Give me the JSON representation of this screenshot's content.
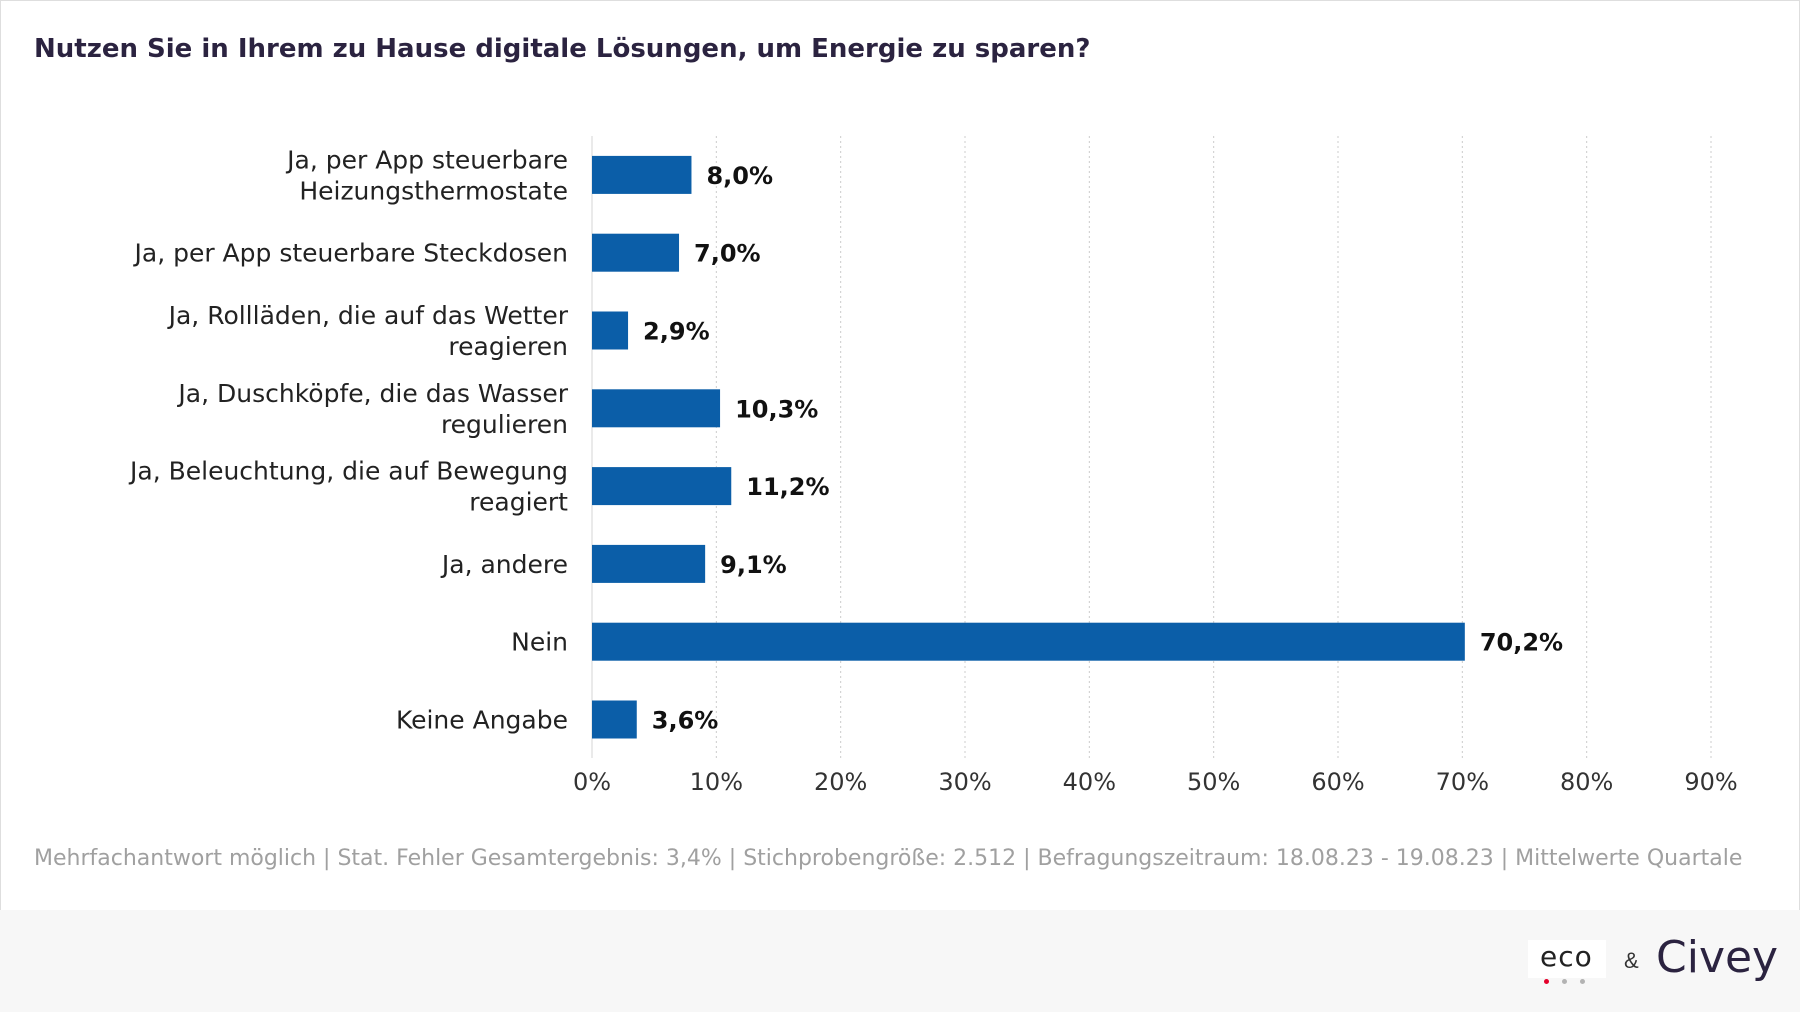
{
  "title": "Nutzen Sie in Ihrem zu Hause digitale Lösungen, um Energie zu sparen?",
  "footnote": "Mehrfachantwort möglich | Stat. Fehler Gesamtergebnis: 3,4% | Stichprobengröße: 2.512 | Befragungszeitraum: 18.08.23 - 19.08.23 | Mittelwerte Quartale",
  "logos": {
    "eco": "eco",
    "ampersand": "&",
    "civey": "Civey"
  },
  "colors": {
    "bar": "#0b5ea8",
    "title": "#2b2340",
    "grid": "#cccccc",
    "eco_dot_red": "#e4002b",
    "eco_dot_grey": "#b3b3b3"
  },
  "chart_data": {
    "type": "bar",
    "orientation": "horizontal",
    "categories": [
      [
        "Ja, per App steuerbare",
        "Heizungsthermostate"
      ],
      [
        "Ja, per App steuerbare Steckdosen"
      ],
      [
        "Ja, Rollläden, die auf das Wetter",
        "reagieren"
      ],
      [
        "Ja, Duschköpfe, die das Wasser",
        "regulieren"
      ],
      [
        "Ja, Beleuchtung, die auf Bewegung",
        "reagiert"
      ],
      [
        "Ja, andere"
      ],
      [
        "Nein"
      ],
      [
        "Keine Angabe"
      ]
    ],
    "values": [
      8.0,
      7.0,
      2.9,
      10.3,
      11.2,
      9.1,
      70.2,
      3.6
    ],
    "value_labels": [
      "8,0%",
      "7,0%",
      "2,9%",
      "10,3%",
      "11,2%",
      "9,1%",
      "70,2%",
      "3,6%"
    ],
    "xlim": [
      0,
      90
    ],
    "ticks": [
      0,
      10,
      20,
      30,
      40,
      50,
      60,
      70,
      80,
      90
    ],
    "tick_labels": [
      "0%",
      "10%",
      "20%",
      "30%",
      "40%",
      "50%",
      "60%",
      "70%",
      "80%",
      "90%"
    ],
    "grid": "vertical dotted"
  }
}
